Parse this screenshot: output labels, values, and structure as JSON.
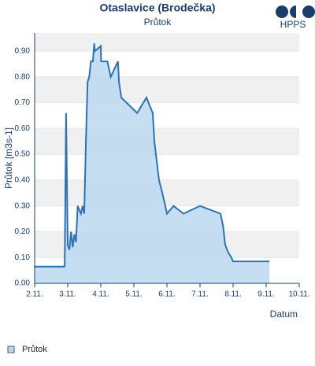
{
  "chart_data": {
    "type": "area",
    "title": "Otaslavice (Brodečka)",
    "subtitle": "Průtok",
    "logo": "HPPS",
    "y_label": "Průtok [m3s-1]",
    "x_label": "Datum",
    "grid": "bands",
    "legend": "bottom-left",
    "xlim": [
      2,
      10
    ],
    "xticks": [
      {
        "value": 2,
        "label": "2.11."
      },
      {
        "value": 3,
        "label": "3.11."
      },
      {
        "value": 4,
        "label": "4.11."
      },
      {
        "value": 5,
        "label": "5.11."
      },
      {
        "value": 6,
        "label": "6.11."
      },
      {
        "value": 7,
        "label": "7.11."
      },
      {
        "value": 8,
        "label": "8.11."
      },
      {
        "value": 9,
        "label": "9.11."
      },
      {
        "value": 10,
        "label": "10.11."
      }
    ],
    "ylim": [
      0,
      0.97
    ],
    "yticks": [
      {
        "value": 0,
        "label": "0.00"
      },
      {
        "value": 0.1,
        "label": "0.10"
      },
      {
        "value": 0.2,
        "label": "0.20"
      },
      {
        "value": 0.3,
        "label": "0.30"
      },
      {
        "value": 0.4,
        "label": "0.40"
      },
      {
        "value": 0.5,
        "label": "0.50"
      },
      {
        "value": 0.6,
        "label": "0.60"
      },
      {
        "value": 0.7,
        "label": "0.70"
      },
      {
        "value": 0.8,
        "label": "0.80"
      },
      {
        "value": 0.9,
        "label": "0.90"
      }
    ],
    "x": [
      2.0,
      2.9,
      2.91,
      2.95,
      3.0,
      3.05,
      3.1,
      3.15,
      3.2,
      3.25,
      3.29,
      3.3,
      3.4,
      3.45,
      3.5,
      3.55,
      3.6,
      3.65,
      3.7,
      3.76,
      3.8,
      3.82,
      4.0,
      4.01,
      4.2,
      4.3,
      4.52,
      4.55,
      4.62,
      5.1,
      5.38,
      5.57,
      5.62,
      5.76,
      5.86,
      5.95,
      6.0,
      6.2,
      6.5,
      7.0,
      7.62,
      7.7,
      7.76,
      7.85,
      7.95,
      8.0,
      9.1
    ],
    "series": [
      {
        "name": "Průtok",
        "color": "#2a73b8",
        "fill": "#bcd8f0",
        "values": [
          0.065,
          0.065,
          0.08,
          0.66,
          0.15,
          0.13,
          0.2,
          0.14,
          0.19,
          0.16,
          0.27,
          0.3,
          0.27,
          0.3,
          0.27,
          0.55,
          0.78,
          0.8,
          0.86,
          0.86,
          0.93,
          0.9,
          0.92,
          0.86,
          0.86,
          0.8,
          0.86,
          0.78,
          0.72,
          0.66,
          0.72,
          0.66,
          0.55,
          0.4,
          0.35,
          0.3,
          0.27,
          0.3,
          0.27,
          0.3,
          0.27,
          0.22,
          0.15,
          0.12,
          0.1,
          0.085,
          0.085
        ]
      }
    ]
  }
}
